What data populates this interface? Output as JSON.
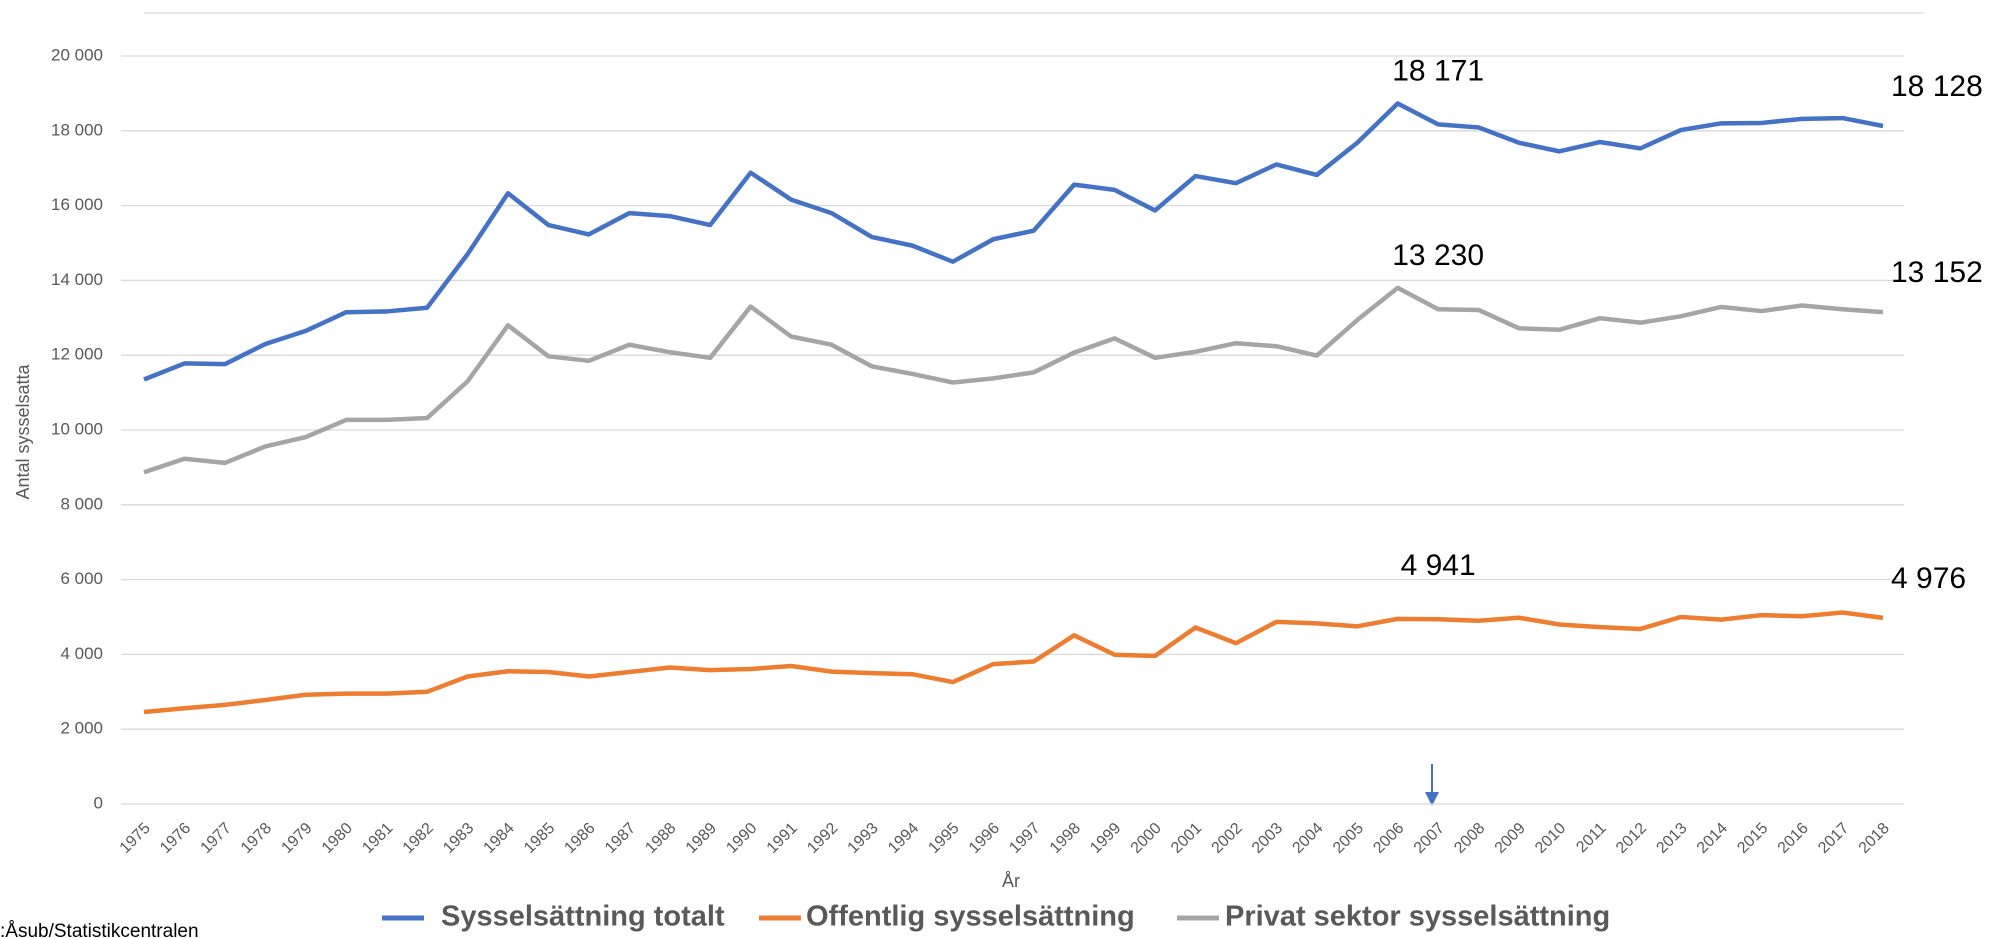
{
  "chart_data": {
    "type": "line",
    "y_label": "Antal sysselsatta",
    "x_label": "År",
    "source": ":Åsub/Statistikcentralen",
    "categories": [
      "1975",
      "1976",
      "1977",
      "1978",
      "1979",
      "1980",
      "1981",
      "1982",
      "1983",
      "1984",
      "1985",
      "1986",
      "1987",
      "1988",
      "1989",
      "1990",
      "1991",
      "1992",
      "1993",
      "1994",
      "1995",
      "1996",
      "1997",
      "1998",
      "1999",
      "2000",
      "2001",
      "2002",
      "2003",
      "2004",
      "2005",
      "2006",
      "2007",
      "2008",
      "2009",
      "2010",
      "2011",
      "2012",
      "2013",
      "2014",
      "2015",
      "2016",
      "2017",
      "2018"
    ],
    "ylim": [
      0,
      20000
    ],
    "yticks": [
      {
        "value": 0,
        "label": "0"
      },
      {
        "value": 2000,
        "label": "2 000"
      },
      {
        "value": 4000,
        "label": "4 000"
      },
      {
        "value": 6000,
        "label": "6 000"
      },
      {
        "value": 8000,
        "label": "8 000"
      },
      {
        "value": 10000,
        "label": "10 000"
      },
      {
        "value": 12000,
        "label": "12 000"
      },
      {
        "value": 14000,
        "label": "14 000"
      },
      {
        "value": 16000,
        "label": "16 000"
      },
      {
        "value": 18000,
        "label": "18 000"
      },
      {
        "value": 20000,
        "label": "20 000"
      }
    ],
    "grid": true,
    "legend": "bottom",
    "series": [
      {
        "name": "Sysselsättning totalt",
        "color": "#4472c4",
        "values": [
          11350,
          11780,
          11760,
          12300,
          12650,
          13150,
          13170,
          13270,
          14700,
          16330,
          15480,
          15230,
          15800,
          15720,
          15480,
          16880,
          16160,
          15800,
          15160,
          14930,
          14500,
          15100,
          15330,
          16560,
          16420,
          15870,
          16790,
          16600,
          17100,
          16820,
          17680,
          18730,
          18171,
          18090,
          17680,
          17450,
          17700,
          17530,
          18020,
          18200,
          18210,
          18320,
          18340,
          18128
        ],
        "value_labels": [
          null,
          null,
          null,
          null,
          null,
          null,
          null,
          null,
          null,
          null,
          null,
          null,
          null,
          null,
          null,
          null,
          null,
          null,
          null,
          null,
          null,
          null,
          null,
          null,
          null,
          null,
          null,
          null,
          null,
          null,
          null,
          null,
          "18 171",
          null,
          null,
          null,
          null,
          null,
          null,
          null,
          null,
          null,
          null,
          "18 128"
        ]
      },
      {
        "name": "Offentlig sysselsättning",
        "color": "#ed7d31",
        "values": [
          2460,
          2560,
          2650,
          2780,
          2920,
          2950,
          2950,
          3000,
          3410,
          3550,
          3530,
          3410,
          3530,
          3650,
          3580,
          3610,
          3690,
          3540,
          3500,
          3470,
          3260,
          3740,
          3810,
          4510,
          3990,
          3960,
          4720,
          4300,
          4870,
          4830,
          4750,
          4950,
          4941,
          4900,
          4980,
          4800,
          4730,
          4680,
          5000,
          4930,
          5050,
          5020,
          5120,
          4976
        ],
        "value_labels": [
          null,
          null,
          null,
          null,
          null,
          null,
          null,
          null,
          null,
          null,
          null,
          null,
          null,
          null,
          null,
          null,
          null,
          null,
          null,
          null,
          null,
          null,
          null,
          null,
          null,
          null,
          null,
          null,
          null,
          null,
          null,
          null,
          "4 941",
          null,
          null,
          null,
          null,
          null,
          null,
          null,
          null,
          null,
          null,
          "4 976"
        ]
      },
      {
        "name": "Privat sektor sysselsättning",
        "color": "#a5a5a5",
        "values": [
          8870,
          9230,
          9120,
          9560,
          9810,
          10270,
          10270,
          10320,
          11300,
          12800,
          11970,
          11850,
          12280,
          12080,
          11930,
          13300,
          12500,
          12280,
          11700,
          11500,
          11270,
          11380,
          11540,
          12070,
          12450,
          11930,
          12090,
          12320,
          12240,
          11990,
          12940,
          13800,
          13230,
          13210,
          12720,
          12680,
          12990,
          12870,
          13040,
          13290,
          13180,
          13330,
          13230,
          13152
        ],
        "value_labels": [
          null,
          null,
          null,
          null,
          null,
          null,
          null,
          null,
          null,
          null,
          null,
          null,
          null,
          null,
          null,
          null,
          null,
          null,
          null,
          null,
          null,
          null,
          null,
          null,
          null,
          null,
          null,
          null,
          null,
          null,
          null,
          null,
          "13 230",
          null,
          null,
          null,
          null,
          null,
          null,
          null,
          null,
          null,
          null,
          "13 152"
        ]
      }
    ]
  }
}
